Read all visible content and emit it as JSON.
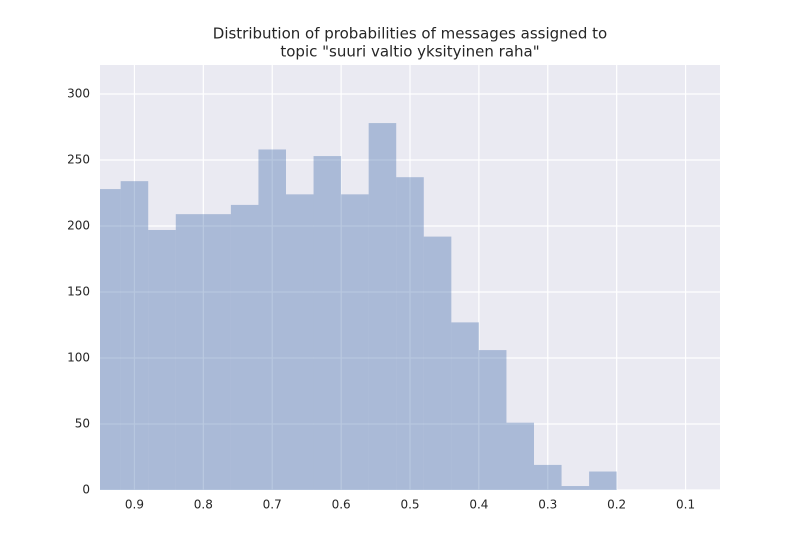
{
  "chart_data": {
    "type": "histogram",
    "title": [
      "Distribution of probabilities of messages assigned to",
      "topic \"suuri valtio yksityinen raha\""
    ],
    "bins": [
      0.2,
      0.24,
      0.28,
      0.32,
      0.36,
      0.4,
      0.44,
      0.48,
      0.52,
      0.56,
      0.6,
      0.64,
      0.68,
      0.72,
      0.76,
      0.8,
      0.84,
      0.88,
      0.92,
      0.96
    ],
    "values": [
      14,
      3,
      19,
      51,
      106,
      127,
      192,
      237,
      278,
      224,
      253,
      224,
      258,
      216,
      209,
      209,
      197,
      234,
      228
    ],
    "color": "#4c72b0",
    "alpha": 0.4,
    "xlim": [
      0.95,
      0.05
    ],
    "xticks": [
      0.9,
      0.8,
      0.7,
      0.6,
      0.5,
      0.4,
      0.3,
      0.2,
      0.1
    ],
    "ylim": [
      0,
      322
    ],
    "yticks": [
      0,
      50,
      100,
      150,
      200,
      250,
      300
    ],
    "grid": true
  }
}
